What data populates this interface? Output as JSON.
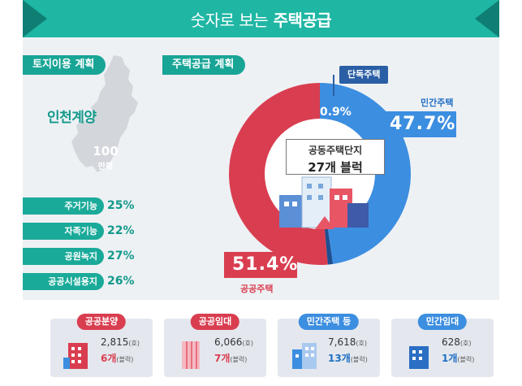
{
  "banner": {
    "prefix": "숫자로 보는",
    "title": "주택공급"
  },
  "land_use": {
    "label": "토지이용 계획",
    "region": "인천계양",
    "area_value": "100",
    "area_unit": "만평",
    "items": [
      {
        "name": "주거기능",
        "pct": "25%"
      },
      {
        "name": "자족기능",
        "pct": "22%"
      },
      {
        "name": "공원녹지",
        "pct": "27%"
      },
      {
        "name": "공공시설용지",
        "pct": "26%"
      }
    ]
  },
  "housing_supply": {
    "label": "주택공급 계획",
    "detached_label": "단독주택",
    "detached_pct": "0.9%",
    "private_label": "민간주택",
    "private_pct": "47.7%",
    "public_label": "공공주택",
    "public_pct": "51.4%",
    "complex_title": "공동주택단지",
    "complex_count": "27개 블럭"
  },
  "chart_data": {
    "type": "pie",
    "labels": [
      "공공주택",
      "민간주택",
      "단독주택"
    ],
    "values": [
      51.4,
      47.7,
      0.9
    ],
    "colors": [
      "#d93e50",
      "#3c8ee0",
      "#1e4f90"
    ]
  },
  "cards": [
    {
      "label": "공공분양",
      "units": "2,815",
      "unit_suffix": "(호)",
      "blocks": "6개",
      "blocks_suffix": "(블럭)",
      "color": "#d93e50"
    },
    {
      "label": "공공임대",
      "units": "6,066",
      "unit_suffix": "(호)",
      "blocks": "7개",
      "blocks_suffix": "(블럭)",
      "color": "#d93e50"
    },
    {
      "label": "민간주택 등",
      "units": "7,618",
      "unit_suffix": "(호)",
      "blocks": "13개",
      "blocks_suffix": "(블럭)",
      "color": "#3c8ee0"
    },
    {
      "label": "민간임대",
      "units": "628",
      "unit_suffix": "(호)",
      "blocks": "1개",
      "blocks_suffix": "(블럭)",
      "color": "#3c8ee0"
    }
  ]
}
